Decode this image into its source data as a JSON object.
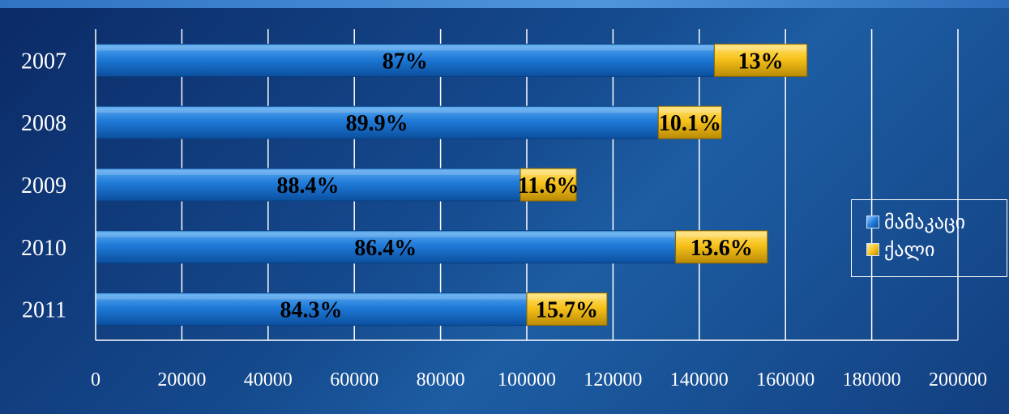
{
  "chart_data": {
    "type": "bar",
    "orientation": "horizontal",
    "stacked": true,
    "categories": [
      "2007",
      "2008",
      "2009",
      "2010",
      "2011"
    ],
    "series": [
      {
        "name": "მამაკაცი",
        "values": [
          143500,
          130500,
          98500,
          134500,
          100000
        ],
        "labels": [
          "87%",
          "89.9%",
          "88.4%",
          "86.4%",
          "84.3%"
        ],
        "color": "#1f78d6"
      },
      {
        "name": "ქალი",
        "values": [
          21500,
          14700,
          13000,
          21300,
          18600
        ],
        "labels": [
          "13%",
          "10.1%",
          "11.6%",
          "13.6%",
          "15.7%"
        ],
        "color": "#f7c21a"
      }
    ],
    "xlim": [
      0,
      200000
    ],
    "xticks": [
      "0",
      "20000",
      "40000",
      "60000",
      "80000",
      "100000",
      "120000",
      "140000",
      "160000",
      "180000",
      "200000"
    ],
    "grid": "vertical",
    "legend_position": "right",
    "title": "",
    "xlabel": "",
    "ylabel": ""
  }
}
